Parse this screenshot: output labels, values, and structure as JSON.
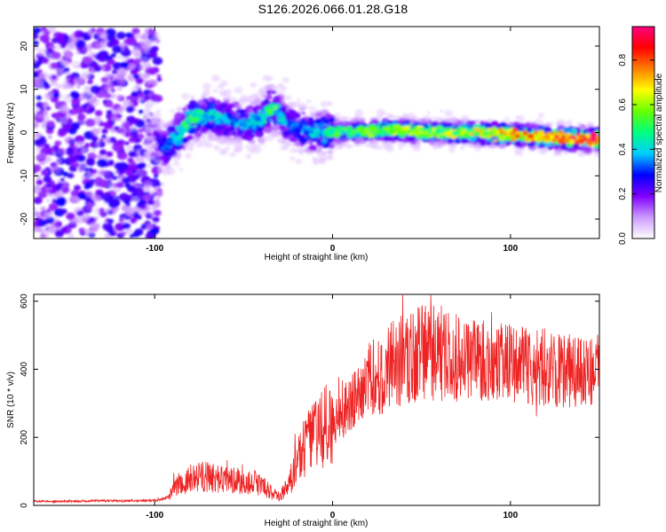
{
  "title": "S126.2026.066.01.28.G18",
  "chart_data": [
    {
      "type": "heatmap",
      "name": "spectrogram",
      "xlabel": "Height of straight line (km)",
      "ylabel": "Frequency (Hz)",
      "xlim": [
        -168,
        150
      ],
      "ylim": [
        -24.5,
        24.5
      ],
      "xticks": [
        -100,
        0,
        100
      ],
      "xtick_labels": [
        "-100",
        "0",
        "100"
      ],
      "yticks": [
        -20,
        -10,
        0,
        10,
        20
      ],
      "ytick_labels": [
        "-20",
        "-10",
        "0",
        "10",
        "20"
      ],
      "colorbar": {
        "label": "Normalized spectral amplitude",
        "range": [
          0.0,
          0.95
        ],
        "ticks": [
          0.0,
          0.2,
          0.4,
          0.6,
          0.8
        ],
        "tick_labels": [
          "0.0",
          "0.2",
          "0.4",
          "0.6",
          "0.8"
        ],
        "colors": [
          "#ffffff",
          "#cc99ff",
          "#8000ff",
          "#0000ff",
          "#00ccff",
          "#00ff80",
          "#66ff00",
          "#ffff00",
          "#ff8000",
          "#ff0000",
          "#ff0080"
        ]
      },
      "ridge": {
        "x": [
          -168,
          -100,
          -95,
          -88,
          -80,
          -70,
          -60,
          -50,
          -40,
          -34,
          -30,
          -25,
          -20,
          -10,
          0,
          20,
          40,
          60,
          80,
          100,
          120,
          140,
          150
        ],
        "freq": [
          0,
          0,
          -4,
          -1,
          3,
          4,
          3,
          2,
          3,
          6,
          4,
          2,
          1,
          0,
          0,
          0.5,
          0.5,
          0,
          0,
          -0.5,
          -1,
          -1.5,
          -1.5
        ],
        "amplitude": [
          0.15,
          0.15,
          0.3,
          0.4,
          0.45,
          0.4,
          0.35,
          0.35,
          0.4,
          0.5,
          0.4,
          0.3,
          0.3,
          0.35,
          0.45,
          0.5,
          0.55,
          0.55,
          0.6,
          0.65,
          0.7,
          0.8,
          0.85
        ]
      }
    },
    {
      "type": "line",
      "name": "snr",
      "xlabel": "Height of straight line (km)",
      "ylabel": "SNR (10 * v/v)",
      "xlim": [
        -168,
        150
      ],
      "ylim": [
        0,
        620
      ],
      "xticks": [
        -100,
        0,
        100
      ],
      "xtick_labels": [
        "-100",
        "0",
        "100"
      ],
      "yticks": [
        0,
        200,
        400,
        600
      ],
      "ytick_labels": [
        "0",
        "200",
        "400",
        "600"
      ],
      "color": "#ee2222",
      "series": [
        {
          "name": "SNR",
          "x": [
            -168,
            -150,
            -130,
            -110,
            -100,
            -92,
            -88,
            -80,
            -70,
            -60,
            -50,
            -40,
            -35,
            -30,
            -25,
            -20,
            -15,
            -10,
            -5,
            0,
            5,
            10,
            15,
            20,
            25,
            30,
            40,
            50,
            60,
            70,
            80,
            90,
            100,
            110,
            120,
            130,
            140,
            150
          ],
          "y": [
            12,
            12,
            14,
            13,
            15,
            25,
            60,
            80,
            85,
            75,
            70,
            60,
            40,
            25,
            60,
            120,
            180,
            200,
            230,
            230,
            270,
            300,
            320,
            360,
            380,
            400,
            430,
            450,
            450,
            440,
            430,
            420,
            415,
            410,
            400,
            400,
            395,
            400
          ]
        }
      ]
    }
  ]
}
